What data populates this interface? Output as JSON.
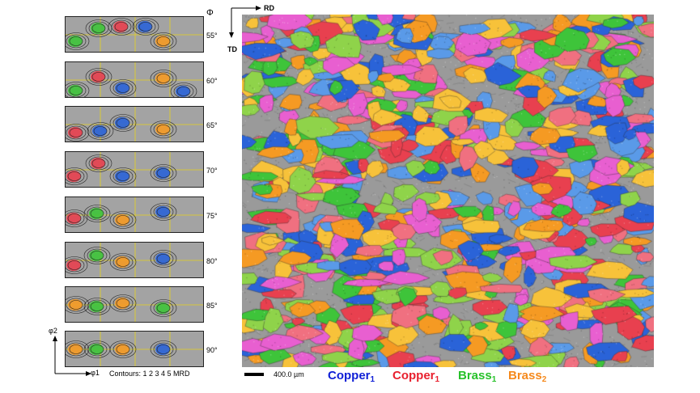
{
  "odf": {
    "phi_symbol": "Φ",
    "sections": [
      "55°",
      "60°",
      "65°",
      "70°",
      "75°",
      "80°",
      "85°",
      "90°"
    ],
    "phi2_label": "φ2",
    "phi1_label": "φ1",
    "contours_label": "Contours: 1 2 3 4 5 MRD"
  },
  "map": {
    "rd_label": "RD",
    "td_label": "TD",
    "scalebar_label": "400.0 µm"
  },
  "legend": [
    {
      "base": "Copper",
      "sub": "1",
      "color": "#0f1fd6"
    },
    {
      "base": "Copper",
      "sub": "1",
      "color": "#e8202e"
    },
    {
      "base": "Brass",
      "sub": "1",
      "color": "#27c12a"
    },
    {
      "base": "Brass",
      "sub": "2",
      "color": "#f5891c"
    }
  ],
  "colors": {
    "copper1_blue": "#2a63d8",
    "copper1_red": "#e8404f",
    "brass1_green": "#3ec43a",
    "brass2_orange": "#f59a23",
    "matrix_gray": "#9a9a9a",
    "grid_yellow": "#e6d21a"
  }
}
